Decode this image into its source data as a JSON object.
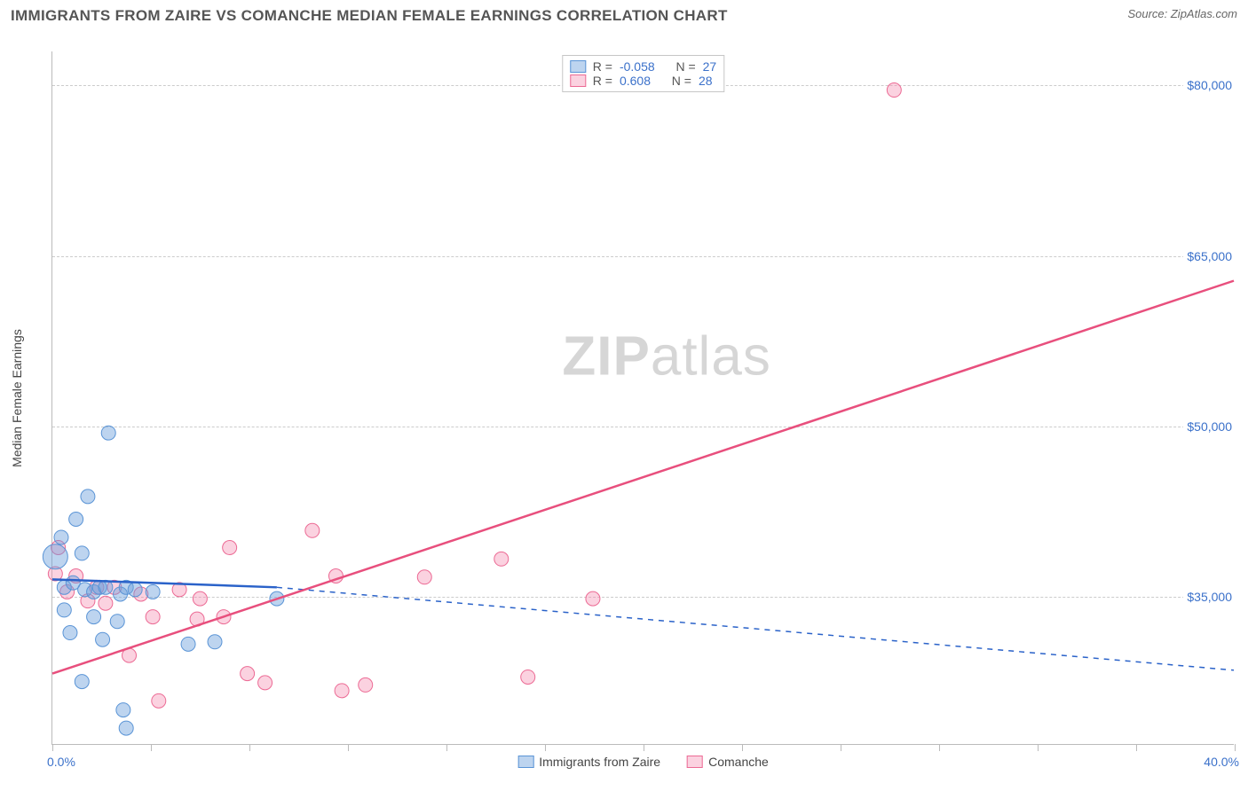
{
  "title": "IMMIGRANTS FROM ZAIRE VS COMANCHE MEDIAN FEMALE EARNINGS CORRELATION CHART",
  "source_label": "Source: ZipAtlas.com",
  "watermark": {
    "part1": "ZIP",
    "part2": "atlas"
  },
  "y_axis_title": "Median Female Earnings",
  "x_axis": {
    "min": 0.0,
    "max": 40.0,
    "label_min": "0.0%",
    "label_max": "40.0%",
    "tick_positions_pct": [
      0,
      8.3,
      16.7,
      25,
      33.3,
      41.7,
      50,
      58.3,
      66.7,
      75,
      83.3,
      91.7,
      100
    ]
  },
  "y_axis": {
    "min": 22000,
    "max": 83000,
    "ticks": [
      {
        "value": 35000,
        "label": "$35,000"
      },
      {
        "value": 50000,
        "label": "$50,000"
      },
      {
        "value": 65000,
        "label": "$65,000"
      },
      {
        "value": 80000,
        "label": "$80,000"
      }
    ]
  },
  "series": {
    "blue": {
      "name": "Immigrants from Zaire",
      "color_fill": "rgba(108,160,220,0.45)",
      "color_stroke": "#5a94d6",
      "line_color": "#2a62c9",
      "R": "-0.058",
      "N": "27",
      "marker_r": 8,
      "trend": {
        "x1": 0.0,
        "y1": 36500,
        "x2_solid": 7.6,
        "y2_solid": 35800,
        "x2_dash": 40.0,
        "y2_dash": 28500
      },
      "points": [
        {
          "x": 0.1,
          "y": 38500,
          "r": 14
        },
        {
          "x": 0.3,
          "y": 40200
        },
        {
          "x": 0.4,
          "y": 35800
        },
        {
          "x": 0.4,
          "y": 33800
        },
        {
          "x": 0.6,
          "y": 31800
        },
        {
          "x": 0.7,
          "y": 36200
        },
        {
          "x": 0.8,
          "y": 41800
        },
        {
          "x": 1.0,
          "y": 38800
        },
        {
          "x": 1.0,
          "y": 27500
        },
        {
          "x": 1.1,
          "y": 35600
        },
        {
          "x": 1.2,
          "y": 43800
        },
        {
          "x": 1.4,
          "y": 33200
        },
        {
          "x": 1.4,
          "y": 35400
        },
        {
          "x": 1.6,
          "y": 35800
        },
        {
          "x": 1.7,
          "y": 31200
        },
        {
          "x": 1.8,
          "y": 35800
        },
        {
          "x": 1.9,
          "y": 49400
        },
        {
          "x": 2.2,
          "y": 32800
        },
        {
          "x": 2.3,
          "y": 35200
        },
        {
          "x": 2.4,
          "y": 25000
        },
        {
          "x": 2.5,
          "y": 35800
        },
        {
          "x": 2.5,
          "y": 23400
        },
        {
          "x": 2.8,
          "y": 35600
        },
        {
          "x": 3.4,
          "y": 35400
        },
        {
          "x": 4.6,
          "y": 30800
        },
        {
          "x": 5.5,
          "y": 31000
        },
        {
          "x": 7.6,
          "y": 34800
        }
      ]
    },
    "pink": {
      "name": "Comanche",
      "color_fill": "rgba(244,143,177,0.40)",
      "color_stroke": "#ec6a94",
      "line_color": "#e84f7d",
      "R": "0.608",
      "N": "28",
      "marker_r": 8,
      "trend": {
        "x1": 0.0,
        "y1": 28200,
        "x2": 40.0,
        "y2": 62800
      },
      "points": [
        {
          "x": 0.1,
          "y": 37000
        },
        {
          "x": 0.2,
          "y": 39300
        },
        {
          "x": 0.5,
          "y": 35400
        },
        {
          "x": 0.8,
          "y": 36800
        },
        {
          "x": 1.2,
          "y": 34600
        },
        {
          "x": 1.5,
          "y": 35800
        },
        {
          "x": 1.8,
          "y": 34400
        },
        {
          "x": 2.1,
          "y": 35800
        },
        {
          "x": 2.6,
          "y": 29800
        },
        {
          "x": 3.0,
          "y": 35200
        },
        {
          "x": 3.4,
          "y": 33200
        },
        {
          "x": 3.6,
          "y": 25800
        },
        {
          "x": 4.3,
          "y": 35600
        },
        {
          "x": 4.9,
          "y": 33000
        },
        {
          "x": 5.0,
          "y": 34800
        },
        {
          "x": 5.8,
          "y": 33200
        },
        {
          "x": 6.0,
          "y": 39300
        },
        {
          "x": 6.6,
          "y": 28200
        },
        {
          "x": 7.2,
          "y": 27400
        },
        {
          "x": 8.8,
          "y": 40800
        },
        {
          "x": 9.6,
          "y": 36800
        },
        {
          "x": 9.8,
          "y": 26700
        },
        {
          "x": 10.6,
          "y": 27200
        },
        {
          "x": 12.6,
          "y": 36700
        },
        {
          "x": 15.2,
          "y": 38300
        },
        {
          "x": 16.1,
          "y": 27900
        },
        {
          "x": 18.3,
          "y": 34800
        },
        {
          "x": 28.5,
          "y": 79600
        }
      ]
    }
  },
  "legend_top": {
    "R_label": "R =",
    "N_label": "N ="
  },
  "style": {
    "axis_color": "#bbb",
    "grid_dash": "4,4",
    "title_color": "#555",
    "tick_label_color": "#3b71ca",
    "background": "#ffffff"
  }
}
